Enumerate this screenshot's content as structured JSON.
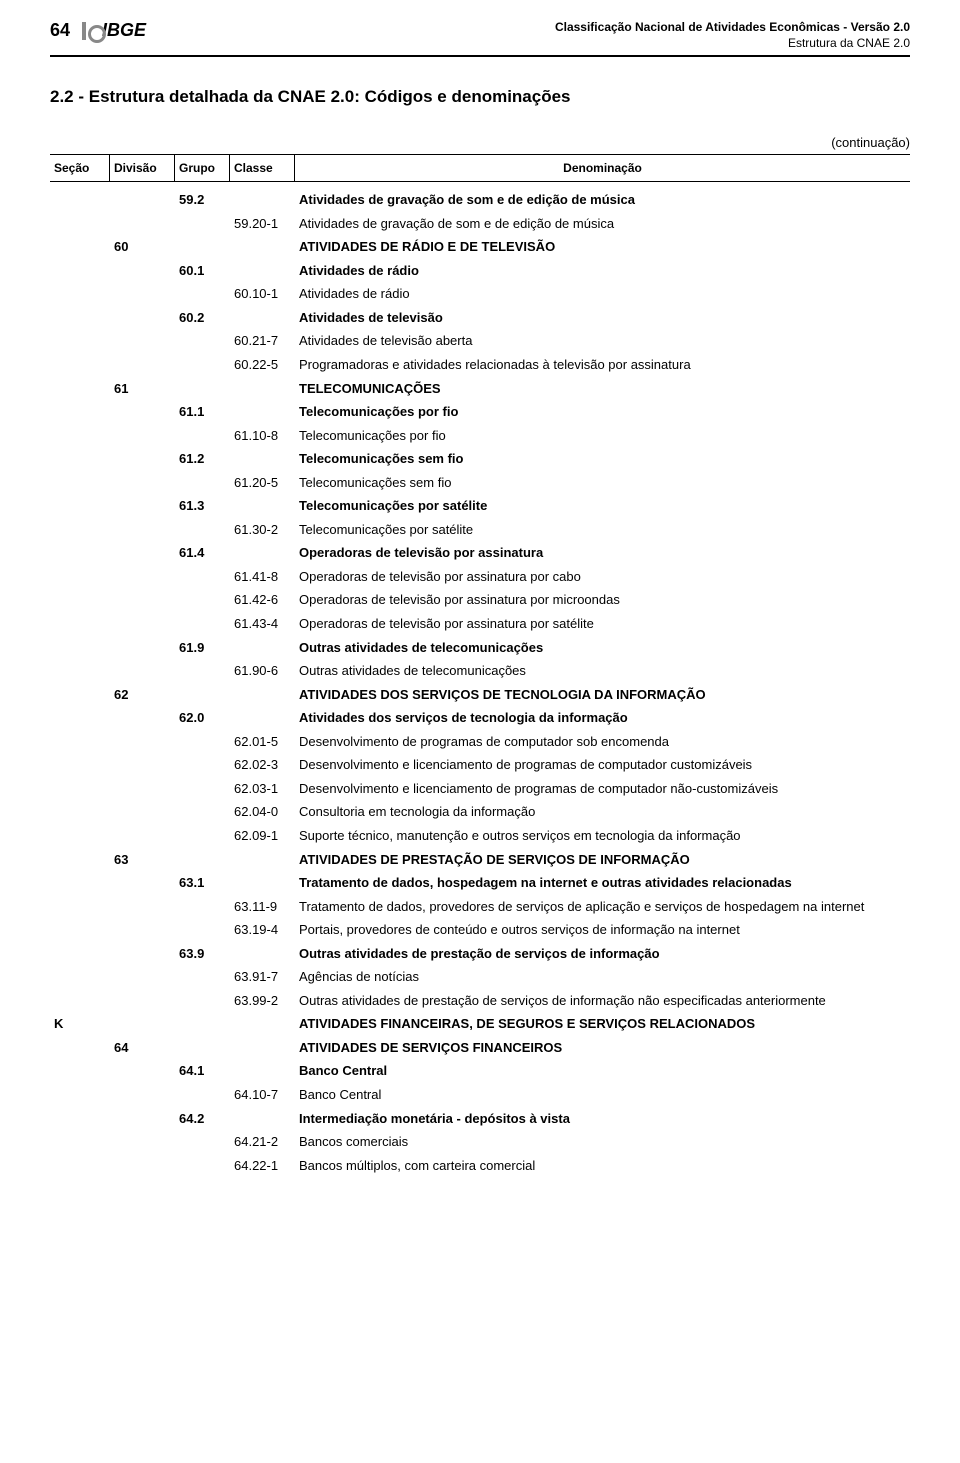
{
  "header": {
    "page_number": "64",
    "logo_text": "IBGE",
    "doc_title": "Classificação Nacional de Atividades Econômicas - Versão 2.0",
    "doc_subtitle": "Estrutura da CNAE 2.0"
  },
  "section_title": "2.2 - Estrutura detalhada da CNAE 2.0: Códigos e denominações",
  "continuation_label": "(continuação)",
  "columns": {
    "secao": "Seção",
    "divisao": "Divisão",
    "grupo": "Grupo",
    "classe": "Classe",
    "denom": "Denominação"
  },
  "rows": [
    {
      "secao": "",
      "divisao": "",
      "grupo": "59.2",
      "classe": "",
      "denom": "Atividades de gravação de som e de edição de música",
      "bold": true
    },
    {
      "secao": "",
      "divisao": "",
      "grupo": "",
      "classe": "59.20-1",
      "denom": "Atividades de gravação de som e de edição de música",
      "bold": false
    },
    {
      "secao": "",
      "divisao": "60",
      "grupo": "",
      "classe": "",
      "denom": "ATIVIDADES DE RÁDIO E DE TELEVISÃO",
      "bold": true
    },
    {
      "secao": "",
      "divisao": "",
      "grupo": "60.1",
      "classe": "",
      "denom": "Atividades de rádio",
      "bold": true
    },
    {
      "secao": "",
      "divisao": "",
      "grupo": "",
      "classe": "60.10-1",
      "denom": "Atividades de rádio",
      "bold": false
    },
    {
      "secao": "",
      "divisao": "",
      "grupo": "60.2",
      "classe": "",
      "denom": "Atividades de televisão",
      "bold": true
    },
    {
      "secao": "",
      "divisao": "",
      "grupo": "",
      "classe": "60.21-7",
      "denom": "Atividades de televisão aberta",
      "bold": false
    },
    {
      "secao": "",
      "divisao": "",
      "grupo": "",
      "classe": "60.22-5",
      "denom": "Programadoras e atividades relacionadas à televisão por assinatura",
      "bold": false
    },
    {
      "secao": "",
      "divisao": "61",
      "grupo": "",
      "classe": "",
      "denom": "TELECOMUNICAÇÕES",
      "bold": true
    },
    {
      "secao": "",
      "divisao": "",
      "grupo": "61.1",
      "classe": "",
      "denom": "Telecomunicações por fio",
      "bold": true
    },
    {
      "secao": "",
      "divisao": "",
      "grupo": "",
      "classe": "61.10-8",
      "denom": "Telecomunicações por fio",
      "bold": false
    },
    {
      "secao": "",
      "divisao": "",
      "grupo": "61.2",
      "classe": "",
      "denom": "Telecomunicações sem fio",
      "bold": true
    },
    {
      "secao": "",
      "divisao": "",
      "grupo": "",
      "classe": "61.20-5",
      "denom": "Telecomunicações sem fio",
      "bold": false
    },
    {
      "secao": "",
      "divisao": "",
      "grupo": "61.3",
      "classe": "",
      "denom": "Telecomunicações por satélite",
      "bold": true
    },
    {
      "secao": "",
      "divisao": "",
      "grupo": "",
      "classe": "61.30-2",
      "denom": "Telecomunicações por satélite",
      "bold": false
    },
    {
      "secao": "",
      "divisao": "",
      "grupo": "61.4",
      "classe": "",
      "denom": "Operadoras de televisão por assinatura",
      "bold": true
    },
    {
      "secao": "",
      "divisao": "",
      "grupo": "",
      "classe": "61.41-8",
      "denom": "Operadoras de televisão por assinatura por cabo",
      "bold": false
    },
    {
      "secao": "",
      "divisao": "",
      "grupo": "",
      "classe": "61.42-6",
      "denom": "Operadoras de televisão por assinatura por microondas",
      "bold": false
    },
    {
      "secao": "",
      "divisao": "",
      "grupo": "",
      "classe": "61.43-4",
      "denom": "Operadoras de televisão por assinatura por satélite",
      "bold": false
    },
    {
      "secao": "",
      "divisao": "",
      "grupo": "61.9",
      "classe": "",
      "denom": "Outras atividades de telecomunicações",
      "bold": true
    },
    {
      "secao": "",
      "divisao": "",
      "grupo": "",
      "classe": "61.90-6",
      "denom": "Outras atividades de telecomunicações",
      "bold": false
    },
    {
      "secao": "",
      "divisao": "62",
      "grupo": "",
      "classe": "",
      "denom": "ATIVIDADES DOS SERVIÇOS DE TECNOLOGIA DA INFORMAÇÃO",
      "bold": true
    },
    {
      "secao": "",
      "divisao": "",
      "grupo": "62.0",
      "classe": "",
      "denom": "Atividades dos serviços de tecnologia da informação",
      "bold": true
    },
    {
      "secao": "",
      "divisao": "",
      "grupo": "",
      "classe": "62.01-5",
      "denom": "Desenvolvimento de programas de computador sob encomenda",
      "bold": false
    },
    {
      "secao": "",
      "divisao": "",
      "grupo": "",
      "classe": "62.02-3",
      "denom": "Desenvolvimento e licenciamento de programas de computador customizáveis",
      "bold": false
    },
    {
      "secao": "",
      "divisao": "",
      "grupo": "",
      "classe": "62.03-1",
      "denom": "Desenvolvimento e licenciamento de programas de computador não-customizáveis",
      "bold": false
    },
    {
      "secao": "",
      "divisao": "",
      "grupo": "",
      "classe": "62.04-0",
      "denom": "Consultoria em tecnologia da informação",
      "bold": false
    },
    {
      "secao": "",
      "divisao": "",
      "grupo": "",
      "classe": "62.09-1",
      "denom": "Suporte técnico, manutenção e outros serviços em tecnologia da informação",
      "bold": false
    },
    {
      "secao": "",
      "divisao": "63",
      "grupo": "",
      "classe": "",
      "denom": "ATIVIDADES DE PRESTAÇÃO DE SERVIÇOS DE INFORMAÇÃO",
      "bold": true
    },
    {
      "secao": "",
      "divisao": "",
      "grupo": "63.1",
      "classe": "",
      "denom": "Tratamento de dados, hospedagem na internet e outras atividades relacionadas",
      "bold": true
    },
    {
      "secao": "",
      "divisao": "",
      "grupo": "",
      "classe": "63.11-9",
      "denom": "Tratamento de dados, provedores de serviços de aplicação e serviços de hospedagem na internet",
      "bold": false
    },
    {
      "secao": "",
      "divisao": "",
      "grupo": "",
      "classe": "63.19-4",
      "denom": "Portais, provedores de conteúdo e outros serviços de informação na internet",
      "bold": false
    },
    {
      "secao": "",
      "divisao": "",
      "grupo": "63.9",
      "classe": "",
      "denom": "Outras atividades de prestação de serviços de informação",
      "bold": true
    },
    {
      "secao": "",
      "divisao": "",
      "grupo": "",
      "classe": "63.91-7",
      "denom": "Agências de notícias",
      "bold": false
    },
    {
      "secao": "",
      "divisao": "",
      "grupo": "",
      "classe": "63.99-2",
      "denom": "Outras atividades de prestação de serviços de informação não especificadas anteriormente",
      "bold": false
    },
    {
      "secao": "K",
      "divisao": "",
      "grupo": "",
      "classe": "",
      "denom": "ATIVIDADES FINANCEIRAS, DE SEGUROS E SERVIÇOS RELACIONADOS",
      "bold": true
    },
    {
      "secao": "",
      "divisao": "64",
      "grupo": "",
      "classe": "",
      "denom": "ATIVIDADES DE SERVIÇOS FINANCEIROS",
      "bold": true
    },
    {
      "secao": "",
      "divisao": "",
      "grupo": "64.1",
      "classe": "",
      "denom": "Banco Central",
      "bold": true
    },
    {
      "secao": "",
      "divisao": "",
      "grupo": "",
      "classe": "64.10-7",
      "denom": "Banco Central",
      "bold": false
    },
    {
      "secao": "",
      "divisao": "",
      "grupo": "64.2",
      "classe": "",
      "denom": "Intermediação monetária - depósitos à vista",
      "bold": true
    },
    {
      "secao": "",
      "divisao": "",
      "grupo": "",
      "classe": "64.21-2",
      "denom": "Bancos comerciais",
      "bold": false
    },
    {
      "secao": "",
      "divisao": "",
      "grupo": "",
      "classe": "64.22-1",
      "denom": "Bancos múltiplos, com carteira comercial",
      "bold": false
    }
  ]
}
